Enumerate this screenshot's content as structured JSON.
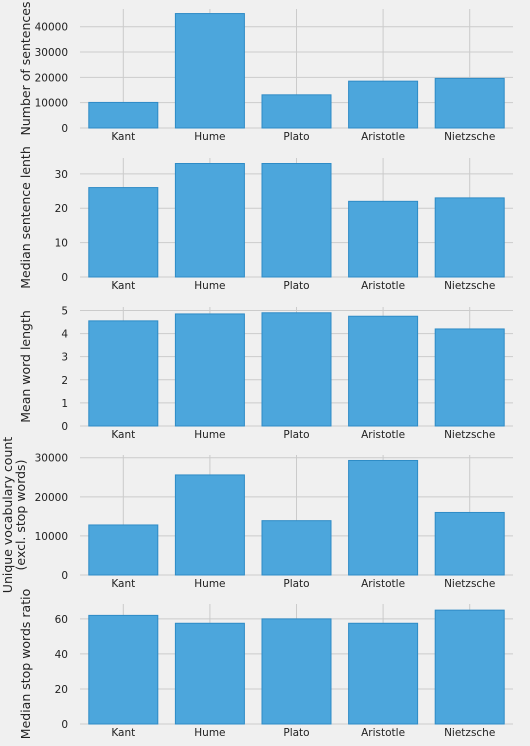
{
  "colors": {
    "background": "#f0f0f0",
    "bar": "#4ca6dc",
    "bar_edge": "#2e8bc6",
    "grid": "#cbcbcb"
  },
  "chart_data": [
    {
      "type": "bar",
      "categories": [
        "Kant",
        "Hume",
        "Plato",
        "Aristotle",
        "Nietzsche"
      ],
      "values": [
        10100,
        45200,
        13100,
        18500,
        19600
      ],
      "ylabel": [
        "Number of sentences"
      ],
      "yticks": [
        0,
        10000,
        20000,
        30000,
        40000
      ],
      "ylim": [
        0,
        47000
      ],
      "grid": true
    },
    {
      "type": "bar",
      "categories": [
        "Kant",
        "Hume",
        "Plato",
        "Aristotle",
        "Nietzsche"
      ],
      "values": [
        26,
        33,
        33,
        22,
        23
      ],
      "ylabel": [
        "Median sentence lenth"
      ],
      "yticks": [
        0,
        10,
        20,
        30
      ],
      "ylim": [
        0,
        34.6
      ],
      "grid": true
    },
    {
      "type": "bar",
      "categories": [
        "Kant",
        "Hume",
        "Plato",
        "Aristotle",
        "Nietzsche"
      ],
      "values": [
        4.55,
        4.85,
        4.9,
        4.75,
        4.2
      ],
      "ylabel": [
        "Mean word length"
      ],
      "yticks": [
        0,
        1,
        2,
        3,
        4,
        5
      ],
      "ylim": [
        0,
        5.15
      ],
      "grid": true
    },
    {
      "type": "bar",
      "categories": [
        "Kant",
        "Hume",
        "Plato",
        "Aristotle",
        "Nietzsche"
      ],
      "values": [
        12800,
        25600,
        13900,
        29300,
        16000
      ],
      "ylabel": [
        "Unique vocabulary count",
        "(excl. stop words)"
      ],
      "yticks": [
        0,
        10000,
        20000,
        30000
      ],
      "ylim": [
        0,
        30700
      ],
      "grid": true
    },
    {
      "type": "bar",
      "categories": [
        "Kant",
        "Hume",
        "Plato",
        "Aristotle",
        "Nietzsche"
      ],
      "values": [
        62,
        57.5,
        60,
        57.5,
        65
      ],
      "ylabel": [
        "Median stop words ratio"
      ],
      "yticks": [
        0,
        20,
        40,
        60
      ],
      "ylim": [
        0,
        68.5
      ],
      "grid": true
    }
  ]
}
